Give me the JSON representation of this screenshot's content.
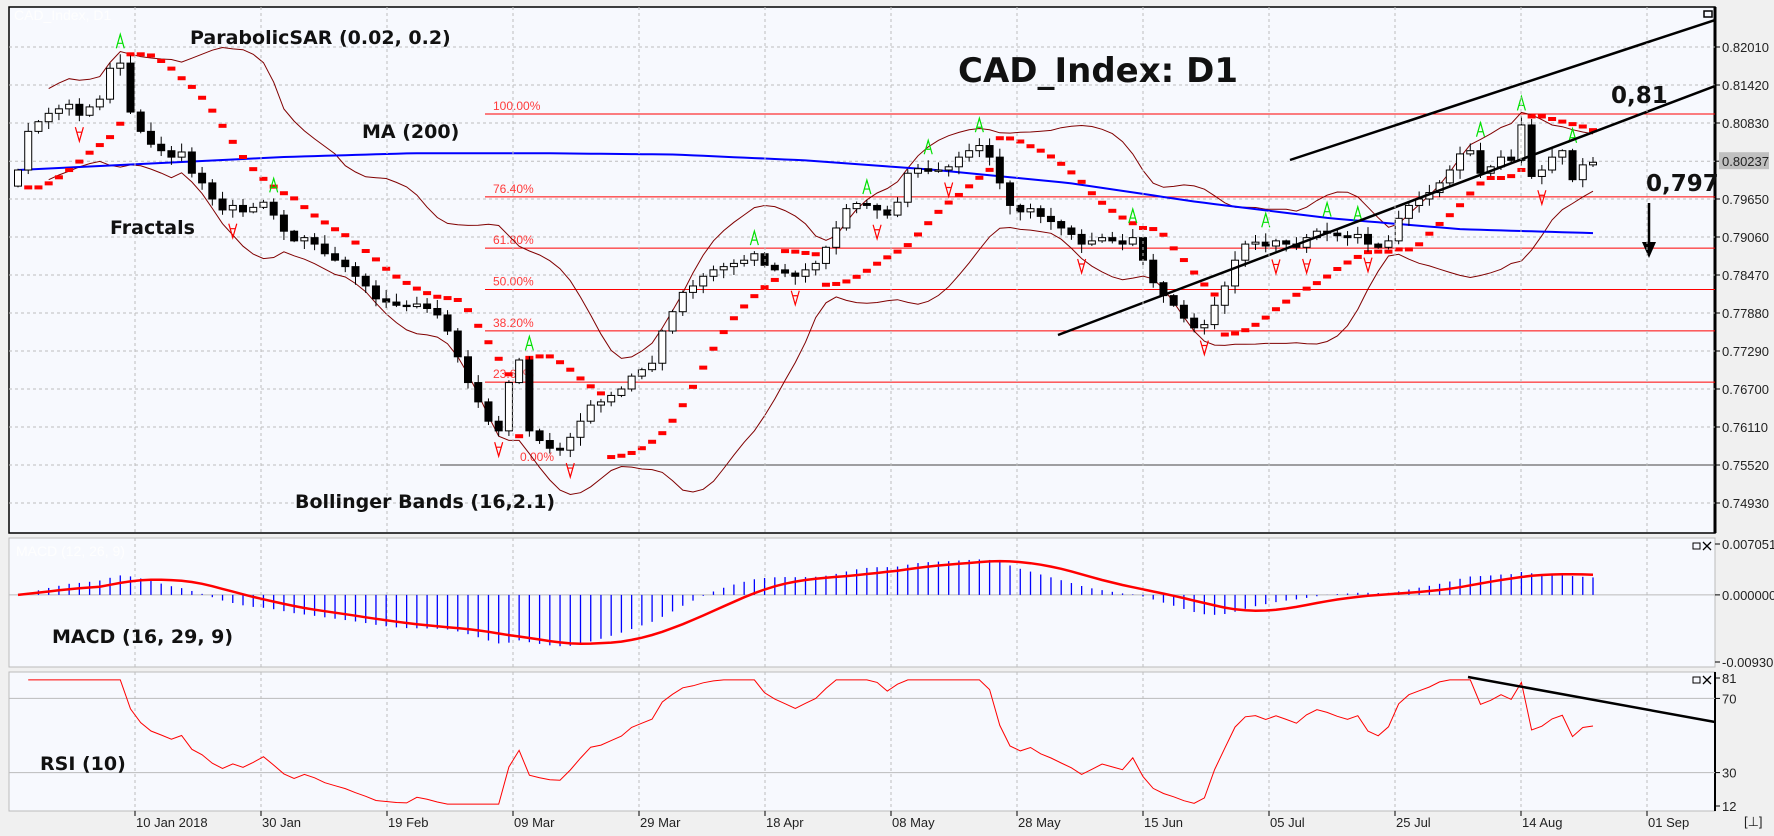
{
  "window": {
    "chart_caption": "CAD_Index, D1",
    "title": "CAD_Index: D1",
    "corner_button": "[⊥]"
  },
  "annotations": {
    "parabolic_sar": "ParabolicSAR (0.02, 0.2)",
    "ma": "MA (200)",
    "fractals": "Fractals",
    "bollinger": "Bollinger Bands (16,2.1)",
    "macd": "MACD (16, 29, 9)",
    "macd_faint": "MACD (12, 26, 9)",
    "rsi": "RSI (10)",
    "level_upper": "0,81",
    "level_lower": "0,797"
  },
  "colors": {
    "background": "#f7f9fe",
    "grid": "#bdbdbd",
    "fibonacci": "#ff0000",
    "bollinger": "#800000",
    "ma200": "#0000ff",
    "sar": "#ff0000",
    "fractal_up": "#00e000",
    "fractal_down": "#ff0000",
    "macd_histogram": "#0000ff",
    "macd_signal": "#ff0000",
    "rsi_line": "#ff0000",
    "trendline": "#000000"
  },
  "chart_data": [
    {
      "type": "candlestick",
      "title": "CAD_Index: D1",
      "price_ticks": [
        "0.82010",
        "0.81420",
        "0.80830",
        "0.80237",
        "0.79650",
        "0.79060",
        "0.78470",
        "0.77880",
        "0.77290",
        "0.76700",
        "0.76110",
        "0.75520",
        "0.74930"
      ],
      "current_price": "0.80237",
      "ylim": [
        0.746,
        0.8238
      ],
      "x_ticks": [
        "10 Jan 2018",
        "30 Jan",
        "19 Feb",
        "09 Mar",
        "29 Mar",
        "18 Apr",
        "08 May",
        "28 May",
        "15 Jun",
        "05 Jul",
        "25 Jul",
        "14 Aug",
        "01 Sep"
      ],
      "grid": true,
      "first_open": 0.7985,
      "close": [
        0.801,
        0.807,
        0.8085,
        0.8098,
        0.8105,
        0.8112,
        0.8095,
        0.8108,
        0.812,
        0.8168,
        0.8176,
        0.81,
        0.807,
        0.805,
        0.804,
        0.803,
        0.8038,
        0.8005,
        0.799,
        0.7965,
        0.7948,
        0.7955,
        0.7945,
        0.7952,
        0.796,
        0.794,
        0.7915,
        0.79,
        0.7905,
        0.7895,
        0.788,
        0.787,
        0.786,
        0.7845,
        0.783,
        0.781,
        0.7805,
        0.78,
        0.7798,
        0.7802,
        0.7795,
        0.7785,
        0.776,
        0.772,
        0.768,
        0.765,
        0.762,
        0.7605,
        0.768,
        0.7715,
        0.7605,
        0.759,
        0.7578,
        0.7575,
        0.7595,
        0.762,
        0.7645,
        0.765,
        0.766,
        0.767,
        0.769,
        0.77,
        0.771,
        0.776,
        0.779,
        0.782,
        0.783,
        0.7845,
        0.7855,
        0.786,
        0.7865,
        0.787,
        0.788,
        0.7862,
        0.7855,
        0.785,
        0.7845,
        0.7855,
        0.7865,
        0.789,
        0.792,
        0.795,
        0.7958,
        0.7955,
        0.7948,
        0.794,
        0.796,
        0.8005,
        0.8012,
        0.8008,
        0.801,
        0.8015,
        0.803,
        0.804,
        0.8048,
        0.803,
        0.799,
        0.7955,
        0.7945,
        0.795,
        0.7938,
        0.793,
        0.792,
        0.791,
        0.7895,
        0.79,
        0.7905,
        0.79,
        0.7895,
        0.7905,
        0.787,
        0.7835,
        0.7815,
        0.78,
        0.778,
        0.7765,
        0.777,
        0.78,
        0.783,
        0.787,
        0.7895,
        0.7898,
        0.7892,
        0.79,
        0.7895,
        0.789,
        0.7905,
        0.7915,
        0.7912,
        0.7908,
        0.7905,
        0.791,
        0.7895,
        0.789,
        0.79,
        0.7935,
        0.7955,
        0.7965,
        0.7975,
        0.799,
        0.801,
        0.8035,
        0.804,
        0.8005,
        0.8015,
        0.803,
        0.8025,
        0.808,
        0.8,
        0.801,
        0.803,
        0.804,
        0.7995,
        0.8018,
        0.8022
      ],
      "ma200_evenly_sampled": [
        0.801,
        0.802,
        0.803,
        0.8036,
        0.8036,
        0.8034,
        0.8025,
        0.801,
        0.799,
        0.796,
        0.7935,
        0.7918,
        0.7912
      ],
      "fibonacci": {
        "level_0": 0.7552,
        "level_100": 0.8097,
        "labels": [
          "100.00%",
          "76.40%",
          "61.80%",
          "50.00%",
          "38.20%",
          "23.60%",
          "0.00%"
        ],
        "ratios": [
          1.0,
          0.764,
          0.618,
          0.5,
          0.382,
          0.236,
          0.0
        ]
      },
      "levels": {
        "resistance": 0.81,
        "target": 0.797
      },
      "indicators": {
        "sar_step": 0.02,
        "sar_max": 0.2,
        "bollinger_period": 16,
        "bollinger_dev": 2.1,
        "ma_period": 200
      }
    },
    {
      "type": "bar+line",
      "name": "MACD (16, 29, 9)",
      "y_ticks": [
        "0.007051",
        "0.000000",
        "-0.00930"
      ],
      "ylim": [
        -0.0093,
        0.007051
      ],
      "fast": 16,
      "slow": 29,
      "signal": 9
    },
    {
      "type": "line",
      "name": "RSI (10)",
      "y_ticks": [
        "81",
        "70",
        "30",
        "12"
      ],
      "ylim": [
        12,
        81
      ],
      "period": 10
    }
  ]
}
